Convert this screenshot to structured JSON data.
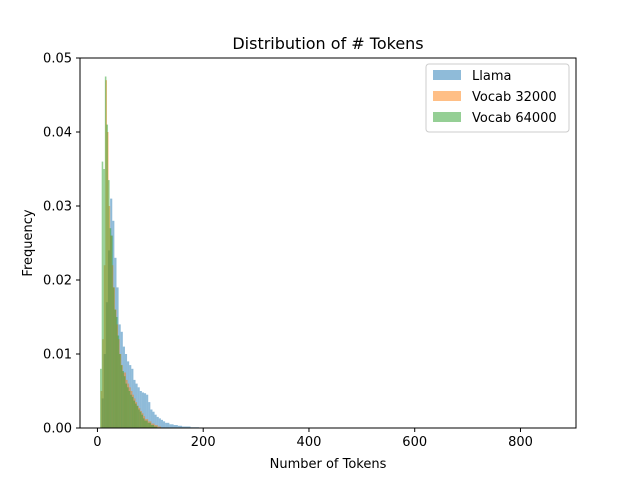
{
  "chart_data": {
    "type": "histogram",
    "title": "Distribution of # Tokens",
    "xlabel": "Number of Tokens",
    "ylabel": "Frequency",
    "xlim": [
      -33,
      905
    ],
    "ylim": [
      0,
      0.05
    ],
    "xticks": [
      0,
      200,
      400,
      600,
      800
    ],
    "yticks": [
      0.0,
      0.01,
      0.02,
      0.03,
      0.04,
      0.05
    ],
    "ytick_labels": [
      "0.00",
      "0.01",
      "0.02",
      "0.03",
      "0.04",
      "0.05"
    ],
    "grid": false,
    "legend_position": "top-right",
    "series": [
      {
        "name": "Llama",
        "color": "#1f77b4",
        "alpha": 0.5,
        "bin_edges": [
          8,
          12,
          16,
          20,
          24,
          28,
          32,
          36,
          40,
          44,
          48,
          52,
          56,
          60,
          64,
          68,
          72,
          76,
          80,
          84,
          88,
          92,
          96,
          100,
          104,
          108,
          112,
          116,
          120,
          124,
          128,
          136,
          144,
          152,
          160,
          176,
          192,
          208
        ],
        "frequencies": [
          0.004,
          0.01,
          0.017,
          0.024,
          0.031,
          0.028,
          0.023,
          0.019,
          0.014,
          0.013,
          0.011,
          0.01,
          0.009,
          0.0085,
          0.008,
          0.0065,
          0.006,
          0.0055,
          0.005,
          0.0048,
          0.0047,
          0.0045,
          0.0035,
          0.0025,
          0.0022,
          0.0018,
          0.0015,
          0.0013,
          0.0011,
          0.0009,
          0.0007,
          0.0005,
          0.0004,
          0.0003,
          0.0002,
          0.0001,
          5e-05
        ]
      },
      {
        "name": "Vocab 32000",
        "color": "#ff7f0e",
        "alpha": 0.5,
        "bin_edges": [
          6,
          9,
          12,
          15,
          18,
          21,
          24,
          27,
          30,
          33,
          36,
          39,
          42,
          45,
          48,
          51,
          54,
          57,
          60,
          63,
          66,
          69,
          72,
          75,
          78,
          81,
          84,
          87,
          90,
          96,
          102,
          108,
          114,
          120
        ],
        "frequencies": [
          0.005,
          0.012,
          0.022,
          0.047,
          0.04,
          0.03,
          0.026,
          0.022,
          0.019,
          0.016,
          0.014,
          0.012,
          0.01,
          0.0085,
          0.0075,
          0.0075,
          0.0065,
          0.006,
          0.0055,
          0.005,
          0.0045,
          0.004,
          0.0035,
          0.003,
          0.0027,
          0.0023,
          0.002,
          0.0016,
          0.0012,
          0.0009,
          0.0006,
          0.0004,
          0.0002
        ]
      },
      {
        "name": "Vocab 64000",
        "color": "#2ca02c",
        "alpha": 0.5,
        "bin_edges": [
          5,
          8,
          11,
          14,
          17,
          20,
          23,
          26,
          29,
          32,
          35,
          38,
          41,
          44,
          47,
          50,
          53,
          56,
          59,
          62,
          65,
          68,
          71,
          74,
          77,
          80,
          83,
          86,
          89,
          95,
          101,
          107,
          113
        ],
        "frequencies": [
          0.008,
          0.036,
          0.035,
          0.0475,
          0.041,
          0.0335,
          0.027,
          0.026,
          0.019,
          0.016,
          0.015,
          0.0125,
          0.01,
          0.0085,
          0.0077,
          0.007,
          0.006,
          0.0055,
          0.005,
          0.0045,
          0.0042,
          0.0037,
          0.0033,
          0.003,
          0.0025,
          0.0022,
          0.0018,
          0.0013,
          0.001,
          0.0007,
          0.0004,
          0.0002
        ]
      }
    ]
  }
}
